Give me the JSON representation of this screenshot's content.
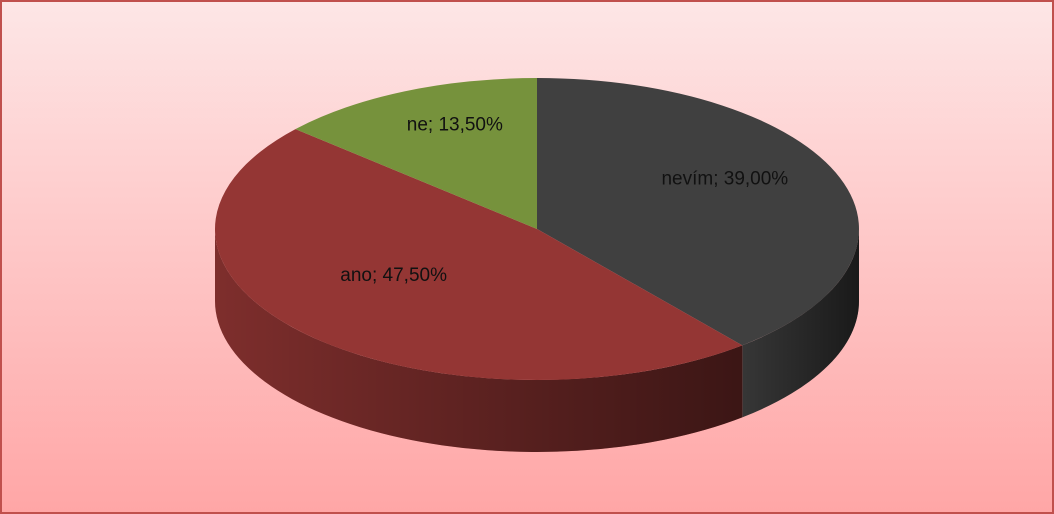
{
  "chart_data": {
    "type": "pie",
    "categories": [
      "nevím",
      "ano",
      "ne"
    ],
    "values": [
      39.0,
      47.5,
      13.5
    ],
    "value_labels": [
      "nevím; 39,00%",
      "ano; 47,50%",
      "ne; 13,50%"
    ],
    "colors": [
      "#404040",
      "#943634",
      "#76923c"
    ]
  }
}
